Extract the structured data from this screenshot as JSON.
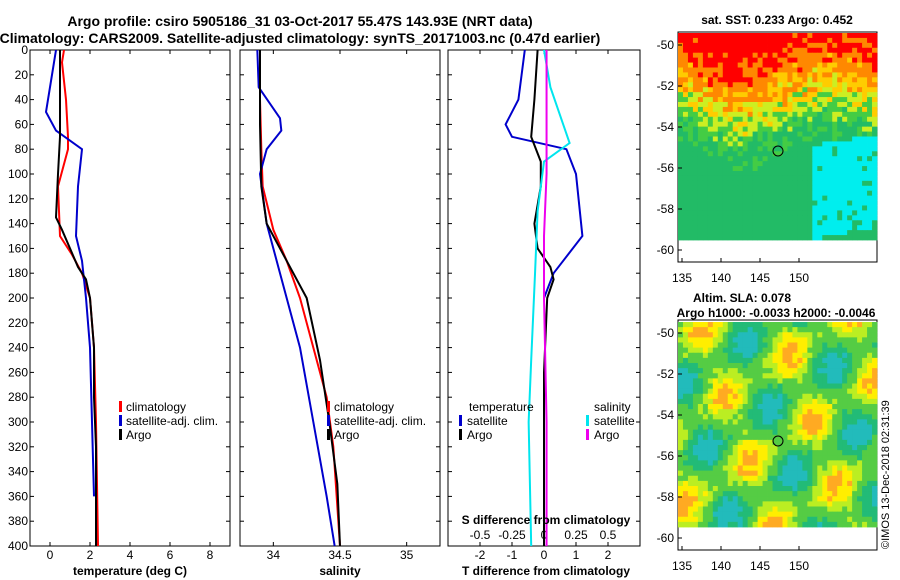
{
  "header": {
    "title_line1": "Argo profile: csiro 5905186_31 03-Oct-2017 55.47S 143.93E (NRT data)",
    "title_line2": "Climatology: CARS2009. Satellite-adjusted climatology: synTS_20171003.nc (0.47d earlier)"
  },
  "colors": {
    "climatology": "#ff0000",
    "satellite": "#0000cc",
    "argo": "#000000",
    "sal_satellite": "#00e5ee",
    "sal_argo": "#ee00ee"
  },
  "chart_data": [
    {
      "type": "line",
      "name": "temperature",
      "xlabel": "temperature (deg C)",
      "ylabel": "",
      "xlim": [
        -1,
        9
      ],
      "ylim": [
        400,
        0
      ],
      "xticks": [
        0,
        2,
        4,
        6,
        8
      ],
      "yticks": [
        0,
        20,
        40,
        60,
        80,
        100,
        120,
        140,
        160,
        180,
        200,
        220,
        240,
        260,
        280,
        300,
        320,
        340,
        360,
        380,
        400
      ],
      "legend": [
        "climatology",
        "satellite-adj. clim.",
        "Argo"
      ],
      "series": [
        {
          "name": "climatology",
          "color": "#ff0000",
          "points": [
            [
              0.7,
              0
            ],
            [
              0.6,
              10
            ],
            [
              0.8,
              40
            ],
            [
              0.9,
              70
            ],
            [
              0.9,
              80
            ],
            [
              0.4,
              110
            ],
            [
              0.5,
              150
            ],
            [
              1.1,
              165
            ],
            [
              1.6,
              180
            ],
            [
              2.0,
              200
            ],
            [
              2.2,
              240
            ],
            [
              2.3,
              300
            ],
            [
              2.4,
              400
            ]
          ]
        },
        {
          "name": "satellite-adj. clim.",
          "color": "#0000cc",
          "points": [
            [
              0.3,
              0
            ],
            [
              0.1,
              20
            ],
            [
              -0.2,
              50
            ],
            [
              0.3,
              65
            ],
            [
              1.6,
              80
            ],
            [
              1.4,
              110
            ],
            [
              1.3,
              150
            ],
            [
              1.6,
              170
            ],
            [
              1.8,
              200
            ],
            [
              2.0,
              240
            ],
            [
              2.1,
              300
            ],
            [
              2.2,
              360
            ]
          ]
        },
        {
          "name": "Argo",
          "color": "#000000",
          "points": [
            [
              0.5,
              0
            ],
            [
              0.5,
              40
            ],
            [
              0.5,
              70
            ],
            [
              0.4,
              100
            ],
            [
              0.3,
              135
            ],
            [
              0.6,
              145
            ],
            [
              1.4,
              175
            ],
            [
              1.8,
              185
            ],
            [
              2.0,
              200
            ],
            [
              2.2,
              240
            ],
            [
              2.2,
              280
            ],
            [
              2.3,
              320
            ],
            [
              2.3,
              400
            ]
          ]
        }
      ]
    },
    {
      "type": "line",
      "name": "salinity",
      "xlabel": "salinity",
      "ylabel": "",
      "xlim": [
        33.75,
        35.25
      ],
      "ylim": [
        400,
        0
      ],
      "xticks": [
        34,
        34.5,
        35
      ],
      "legend": [
        "climatology",
        "satellite-adj. clim.",
        "Argo"
      ],
      "series": [
        {
          "name": "climatology",
          "color": "#ff0000",
          "points": [
            [
              33.9,
              0
            ],
            [
              33.9,
              40
            ],
            [
              33.91,
              80
            ],
            [
              33.92,
              110
            ],
            [
              34.0,
              145
            ],
            [
              34.1,
              170
            ],
            [
              34.2,
              200
            ],
            [
              34.3,
              240
            ],
            [
              34.4,
              280
            ],
            [
              34.45,
              320
            ],
            [
              34.5,
              400
            ]
          ]
        },
        {
          "name": "satellite-adj. clim.",
          "color": "#0000cc",
          "points": [
            [
              33.88,
              0
            ],
            [
              33.89,
              30
            ],
            [
              34.05,
              55
            ],
            [
              34.06,
              65
            ],
            [
              33.95,
              80
            ],
            [
              33.9,
              100
            ],
            [
              33.95,
              140
            ],
            [
              34.05,
              180
            ],
            [
              34.2,
              240
            ],
            [
              34.3,
              300
            ],
            [
              34.4,
              360
            ],
            [
              34.46,
              400
            ]
          ]
        },
        {
          "name": "Argo",
          "color": "#000000",
          "points": [
            [
              33.9,
              0
            ],
            [
              33.9,
              60
            ],
            [
              33.91,
              110
            ],
            [
              33.95,
              140
            ],
            [
              34.1,
              170
            ],
            [
              34.25,
              200
            ],
            [
              34.35,
              250
            ],
            [
              34.42,
              300
            ],
            [
              34.48,
              350
            ],
            [
              34.5,
              400
            ]
          ]
        }
      ]
    },
    {
      "type": "line",
      "name": "differences",
      "xlabel": "T difference from climatology",
      "top_label": "S difference from climatology",
      "xlim": [
        -3,
        3
      ],
      "ylim": [
        400,
        0
      ],
      "xticks": [
        -2,
        -1,
        0,
        1,
        2
      ],
      "xtick_labels": [
        "-2",
        "-1",
        "0",
        "1",
        "2"
      ],
      "top_ticks": [
        -0.5,
        -0.25,
        0,
        0.25,
        0.5
      ],
      "top_tick_labels": [
        "-0.5",
        "-0.25",
        "0",
        "0.25",
        "0.5"
      ],
      "legend_temperature_title": "temperature",
      "legend_salinity_title": "salinity",
      "legend_temperature": [
        "satellite",
        "Argo"
      ],
      "legend_salinity": [
        "satellite",
        "Argo"
      ],
      "series": [
        {
          "name": "temperature satellite",
          "color": "#0000cc",
          "points": [
            [
              -0.6,
              0
            ],
            [
              -0.8,
              40
            ],
            [
              -1.2,
              60
            ],
            [
              -1.0,
              70
            ],
            [
              0.7,
              80
            ],
            [
              1.0,
              100
            ],
            [
              1.2,
              150
            ],
            [
              0.6,
              170
            ],
            [
              0.3,
              180
            ],
            [
              0.0,
              200
            ]
          ]
        },
        {
          "name": "temperature Argo",
          "color": "#000000",
          "points": [
            [
              -0.2,
              0
            ],
            [
              -0.3,
              40
            ],
            [
              -0.4,
              70
            ],
            [
              -0.1,
              90
            ],
            [
              -0.1,
              110
            ],
            [
              -0.3,
              140
            ],
            [
              -0.2,
              160
            ],
            [
              0.2,
              175
            ],
            [
              0.3,
              185
            ],
            [
              0.1,
              200
            ],
            [
              0.0,
              260
            ],
            [
              0.0,
              400
            ]
          ]
        },
        {
          "name": "salinity satellite",
          "color": "#00e5ee",
          "points": [
            [
              0.0,
              0
            ],
            [
              0.05,
              30
            ],
            [
              0.15,
              60
            ],
            [
              0.2,
              75
            ],
            [
              0.0,
              90
            ],
            [
              -0.05,
              130
            ],
            [
              -0.07,
              180
            ],
            [
              -0.1,
              250
            ],
            [
              -0.12,
              300
            ],
            [
              -0.1,
              400
            ]
          ]
        },
        {
          "name": "salinity Argo",
          "color": "#ee00ee",
          "points": [
            [
              0.02,
              0
            ],
            [
              0.02,
              100
            ],
            [
              0.0,
              150
            ],
            [
              0.0,
              200
            ],
            [
              0.02,
              300
            ],
            [
              0.02,
              400
            ]
          ]
        }
      ]
    }
  ],
  "maps": {
    "sst": {
      "title": "sat. SST: 0.233 Argo: 0.452",
      "xticks": [
        "135",
        "140",
        "145",
        "150"
      ],
      "yticks": [
        "-50",
        "-52",
        "-54",
        "-56",
        "-58",
        "-60"
      ]
    },
    "sla": {
      "title_line1": "Altim. SLA: 0.078",
      "title_line2": "Argo h1000: -0.0033 h2000: -0.0046",
      "xticks": [
        "135",
        "140",
        "145",
        "150"
      ],
      "yticks": [
        "-50",
        "-52",
        "-54",
        "-56",
        "-58",
        "-60"
      ]
    }
  },
  "watermark": "©IMOS 13-Dec-2018 02:31:39"
}
